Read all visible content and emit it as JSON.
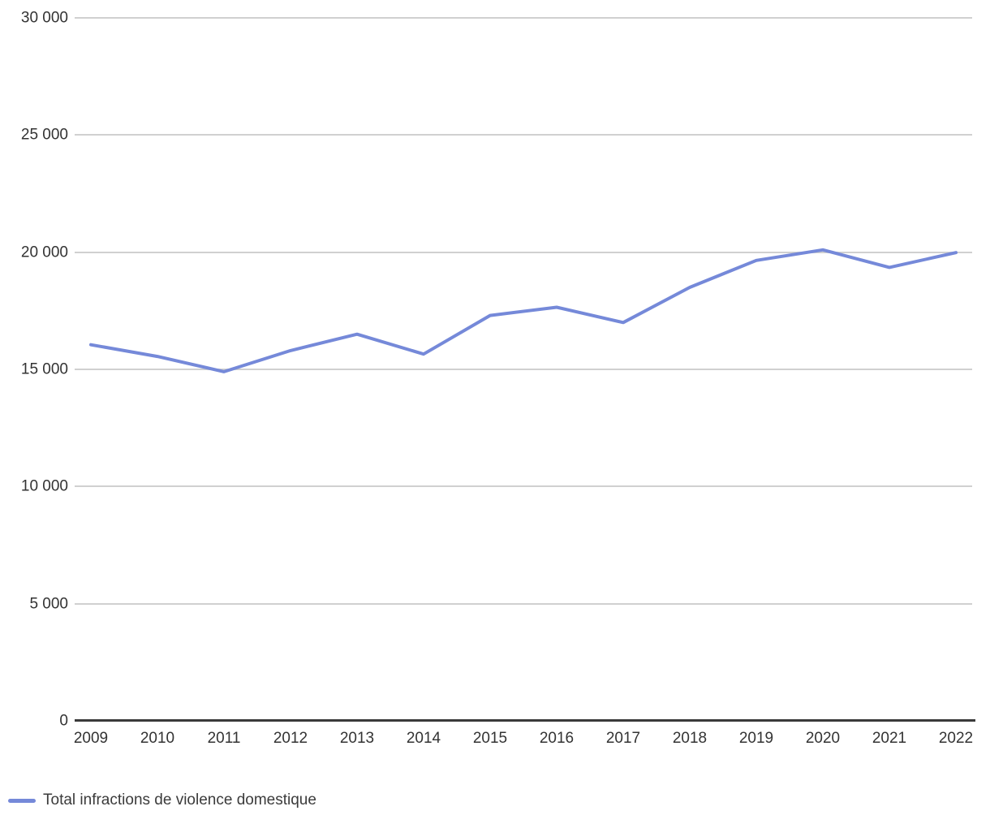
{
  "chart_data": {
    "type": "line",
    "x": [
      2009,
      2010,
      2011,
      2012,
      2013,
      2014,
      2015,
      2016,
      2017,
      2018,
      2019,
      2020,
      2021,
      2022
    ],
    "series": [
      {
        "name": "Total infractions de violence domestique",
        "values": [
          16050,
          15550,
          14900,
          15800,
          16500,
          15650,
          17300,
          17650,
          17000,
          18500,
          19650,
          20100,
          19350,
          19980
        ],
        "color": "#7589d9"
      }
    ],
    "title": "",
    "xlabel": "",
    "ylabel": "",
    "ylim": [
      0,
      30000
    ],
    "yticks": [
      0,
      5000,
      10000,
      15000,
      20000,
      25000,
      30000
    ],
    "ytick_labels": [
      "0",
      "5 000",
      "10 000",
      "15 000",
      "20 000",
      "25 000",
      "30 000"
    ],
    "xtick_labels": [
      "2009",
      "2010",
      "2011",
      "2012",
      "2013",
      "2014",
      "2015",
      "2016",
      "2017",
      "2018",
      "2019",
      "2020",
      "2021",
      "2022"
    ],
    "grid": "horizontal",
    "legend_position": "bottom-left"
  },
  "colors": {
    "series_line": "#7589d9",
    "gridline": "#d0d0d0",
    "axis_line": "#3a3a3a",
    "tick_label": "#333333",
    "legend_text": "#3b3b3b",
    "background": "#ffffff"
  },
  "legend": {
    "item_label": "Total infractions de violence domestique"
  }
}
